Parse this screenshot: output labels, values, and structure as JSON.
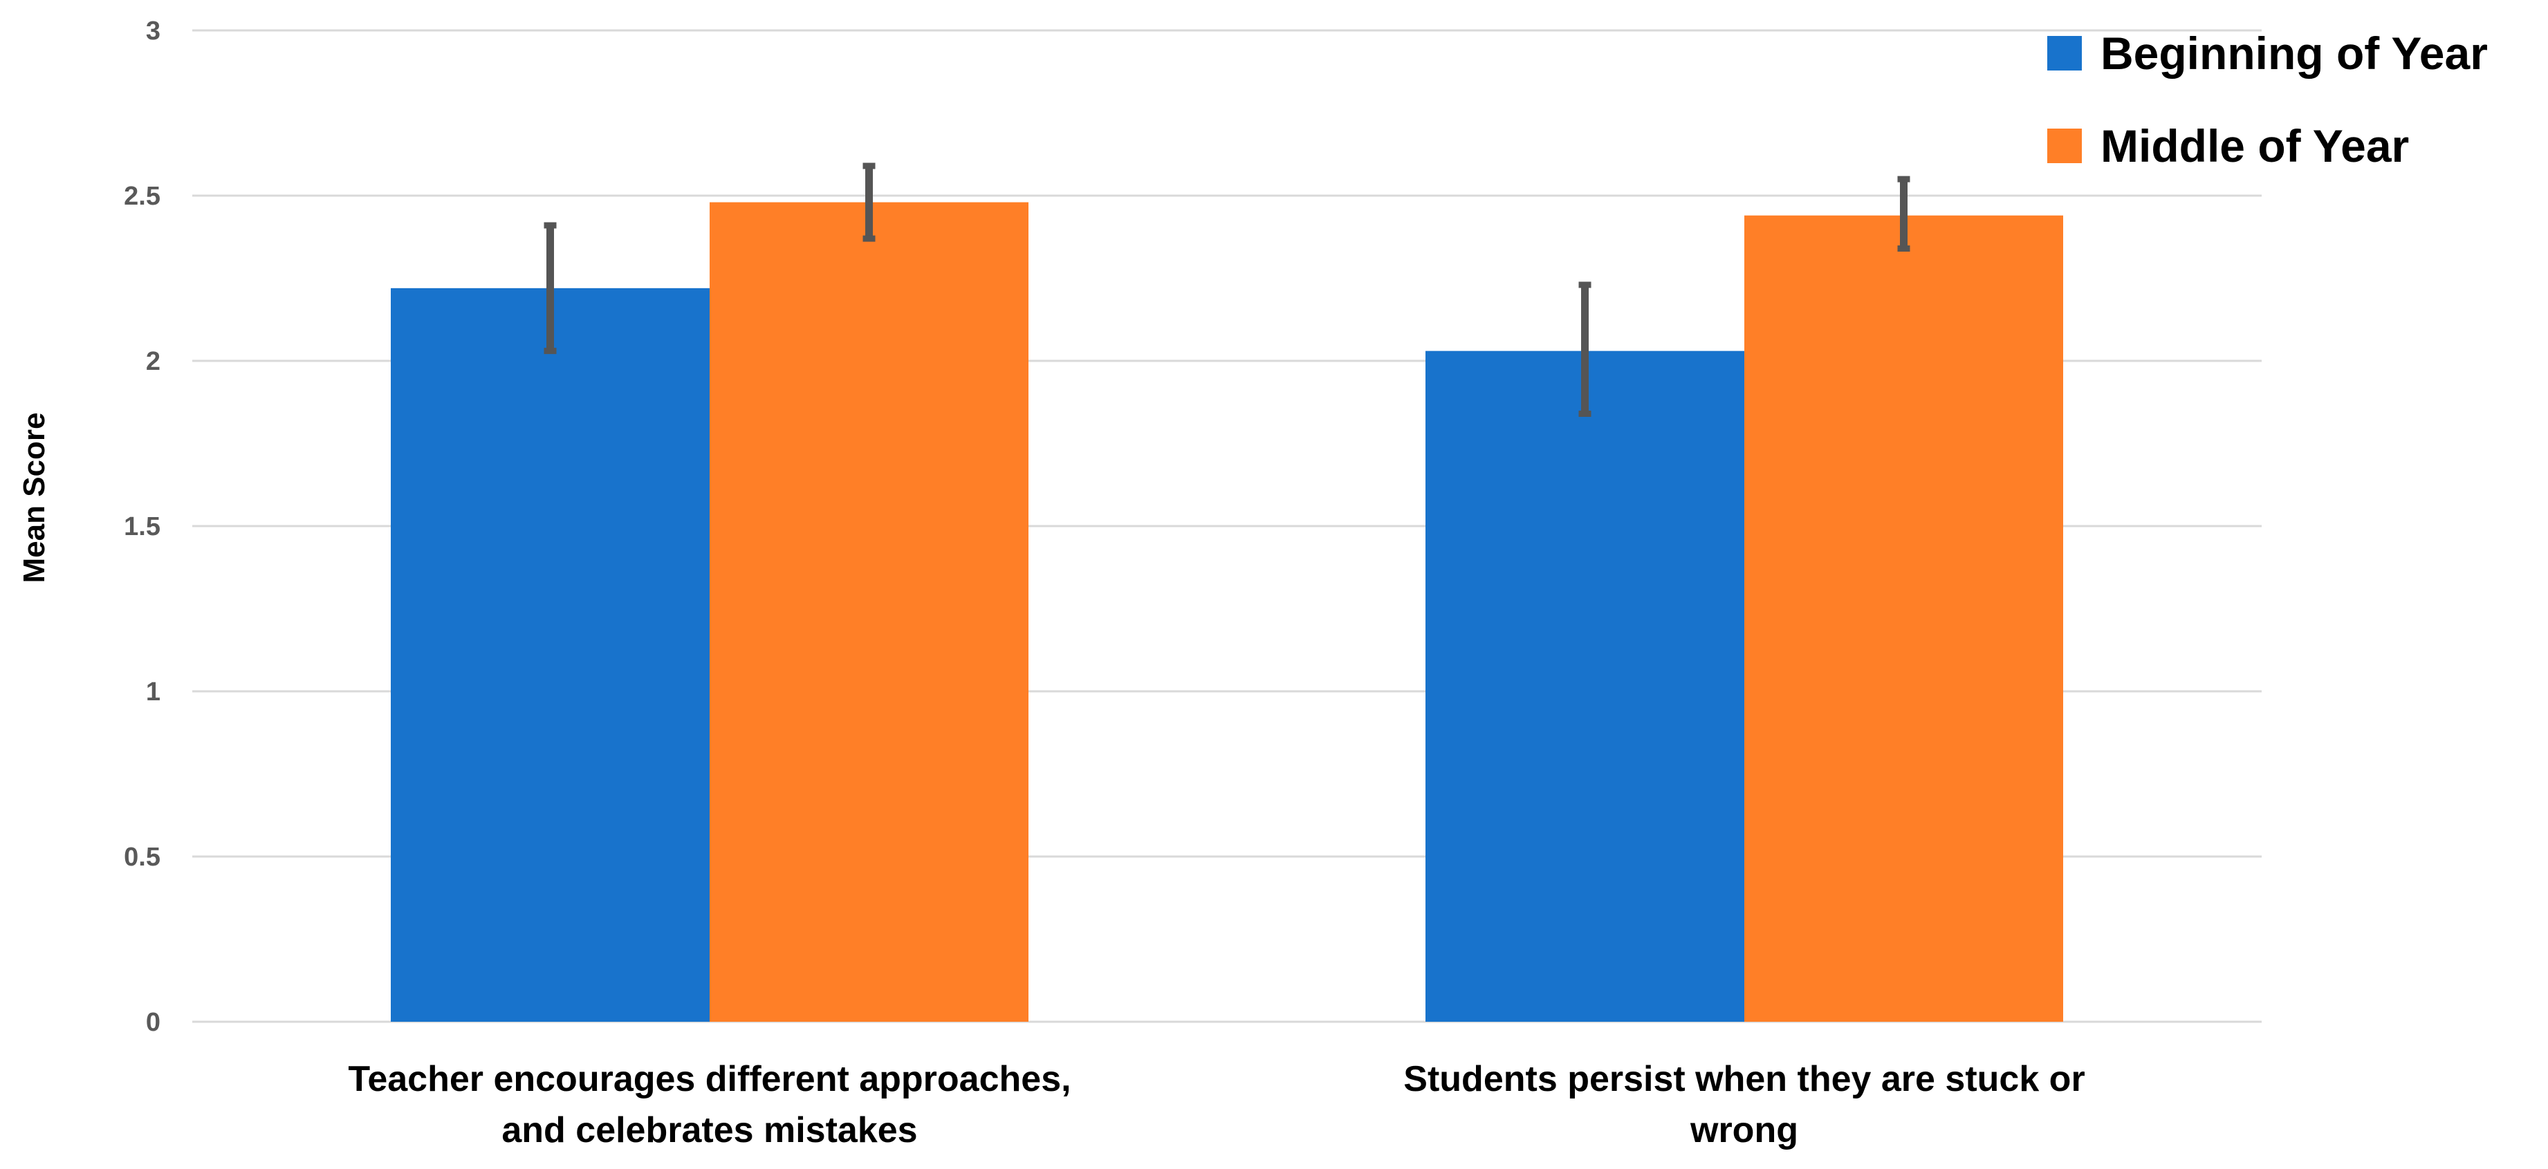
{
  "chart_data": {
    "type": "bar",
    "title": "",
    "xlabel": "",
    "ylabel": "Mean Score",
    "ylim": [
      0,
      3
    ],
    "yticks": [
      0,
      0.5,
      1,
      1.5,
      2,
      2.5,
      3
    ],
    "ytick_labels": [
      "0",
      "0.5",
      "1",
      "1.5",
      "2",
      "2.5",
      "3"
    ],
    "grid": true,
    "legend_position": "top-right",
    "categories": [
      [
        "Teacher encourages different approaches,",
        "and celebrates mistakes"
      ],
      [
        "Students persist when they are stuck or",
        "wrong"
      ]
    ],
    "series": [
      {
        "name": "Beginning of Year",
        "color": "#1873CC",
        "values": [
          2.22,
          2.03
        ],
        "error_low": [
          2.03,
          1.84
        ],
        "error_high": [
          2.41,
          2.23
        ]
      },
      {
        "name": "Middle of Year",
        "color": "#FF7F27",
        "values": [
          2.48,
          2.44
        ],
        "error_low": [
          2.37,
          2.34
        ],
        "error_high": [
          2.59,
          2.55
        ]
      }
    ],
    "error_bar_color": "#555555",
    "gridline_color": "#D9D9D9"
  }
}
